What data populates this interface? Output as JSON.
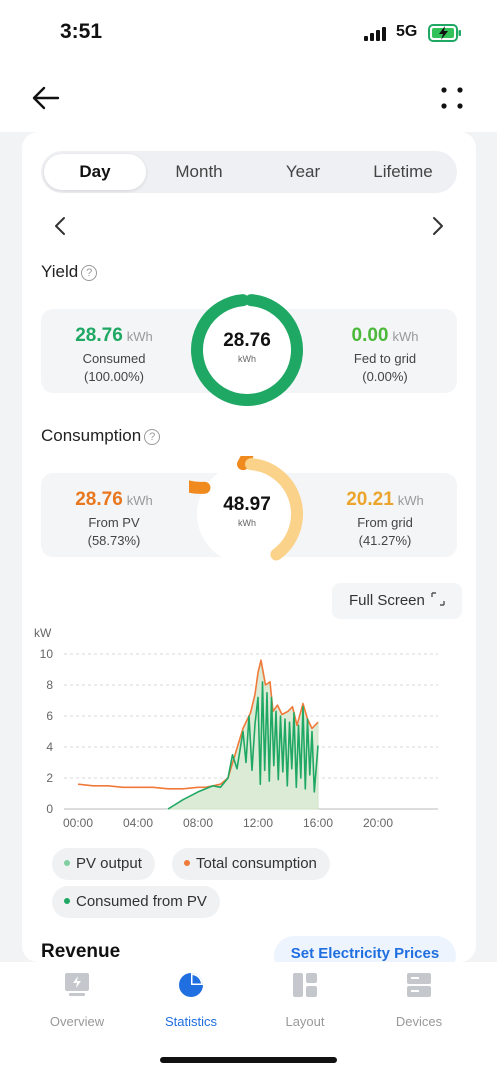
{
  "status": {
    "time": "3:51",
    "network": "5G"
  },
  "tabs": [
    "Day",
    "Month",
    "Year",
    "Lifetime"
  ],
  "yield": {
    "title": "Yield",
    "total": "28.76",
    "total_unit": "kWh",
    "consumed": {
      "value": "28.76",
      "unit": "kWh",
      "label": "Consumed",
      "percent": "(100.00%)",
      "fraction": 1.0
    },
    "fed": {
      "value": "0.00",
      "unit": "kWh",
      "label": "Fed to grid",
      "percent": "(0.00%)",
      "fraction": 0.0
    }
  },
  "consumption": {
    "title": "Consumption",
    "total": "48.97",
    "total_unit": "kWh",
    "from_pv": {
      "value": "28.76",
      "unit": "kWh",
      "label": "From PV",
      "percent": "(58.73%)",
      "fraction": 0.5873
    },
    "from_grid": {
      "value": "20.21",
      "unit": "kWh",
      "label": "From grid",
      "percent": "(41.27%)",
      "fraction": 0.4127
    }
  },
  "full_screen": "Full Screen",
  "colors": {
    "green": "#1fa864",
    "orange": "#f08a1e",
    "light_orange": "#fbd28a",
    "pv_fill": "#dcebd6",
    "consumption_line": "#f07a3a",
    "blue": "#1f6fe0"
  },
  "chart_data": {
    "type": "line",
    "y_unit": "kW",
    "yticks": [
      "10",
      "8",
      "6",
      "4",
      "2",
      "0"
    ],
    "xticks": [
      "00:00",
      "04:00",
      "08:00",
      "12:00",
      "16:00",
      "20:00"
    ],
    "ylim": [
      0,
      10
    ],
    "xlim_hours": [
      0,
      24
    ],
    "series": [
      {
        "name": "PV output",
        "x": [
          6.0,
          7.0,
          8.0,
          9.0,
          9.5,
          10.0,
          10.5,
          11.0,
          11.5,
          11.8,
          12.0,
          12.2,
          12.5,
          12.8,
          13.0,
          13.3,
          13.6,
          14.0,
          14.3,
          14.6,
          15.0,
          15.3,
          15.6,
          16.0
        ],
        "values": [
          0,
          0.6,
          1.1,
          1.5,
          1.6,
          2.0,
          3.6,
          5.2,
          6.2,
          7.4,
          8.8,
          9.3,
          7.8,
          8.2,
          6.3,
          6.7,
          6.1,
          6.3,
          6.6,
          5.4,
          6.8,
          5.8,
          5.2,
          5.6
        ]
      },
      {
        "name": "Total consumption",
        "x": [
          0,
          1,
          2,
          3,
          4,
          5,
          6,
          7,
          8,
          8.5,
          9,
          9.5,
          10,
          10.5,
          11,
          11.5,
          11.8,
          12,
          12.2,
          12.5,
          12.8,
          13,
          13.3,
          13.6,
          14,
          14.3,
          14.6,
          15,
          15.3,
          15.6,
          16
        ],
        "values": [
          1.6,
          1.5,
          1.5,
          1.4,
          1.4,
          1.4,
          1.3,
          1.3,
          1.4,
          1.4,
          1.5,
          1.6,
          2.0,
          3.6,
          5.2,
          6.2,
          7.4,
          8.8,
          9.6,
          8.0,
          8.2,
          6.3,
          6.7,
          6.1,
          6.3,
          6.6,
          5.4,
          6.8,
          5.8,
          5.2,
          5.6
        ]
      },
      {
        "name": "Consumed from PV",
        "x": [
          6.0,
          7.0,
          8.0,
          9.0,
          9.5,
          10.0,
          10.3,
          10.6,
          11.0,
          11.2,
          11.4,
          11.6,
          11.8,
          12.0,
          12.15,
          12.3,
          12.45,
          12.6,
          12.75,
          12.9,
          13.05,
          13.2,
          13.35,
          13.5,
          13.65,
          13.8,
          13.95,
          14.1,
          14.25,
          14.4,
          14.55,
          14.7,
          14.85,
          15.0,
          15.15,
          15.3,
          15.45,
          15.6,
          15.75,
          16.0
        ],
        "values": [
          0,
          0.6,
          1.1,
          1.5,
          1.4,
          2.0,
          3.5,
          2.6,
          5.0,
          3.0,
          6.0,
          2.5,
          5.5,
          7.2,
          1.6,
          8.2,
          2.5,
          7.5,
          1.8,
          7.2,
          2.8,
          6.3,
          1.9,
          6.0,
          2.4,
          5.8,
          1.5,
          5.6,
          2.6,
          6.2,
          1.4,
          5.4,
          2.0,
          6.6,
          1.3,
          5.8,
          2.2,
          5.0,
          1.1,
          4.1
        ]
      }
    ]
  },
  "legend": [
    "PV output",
    "Total consumption",
    "Consumed from PV"
  ],
  "revenue": {
    "title": "Revenue",
    "button": "Set Electricity Prices"
  },
  "bottom_nav": [
    "Overview",
    "Statistics",
    "Layout",
    "Devices"
  ]
}
